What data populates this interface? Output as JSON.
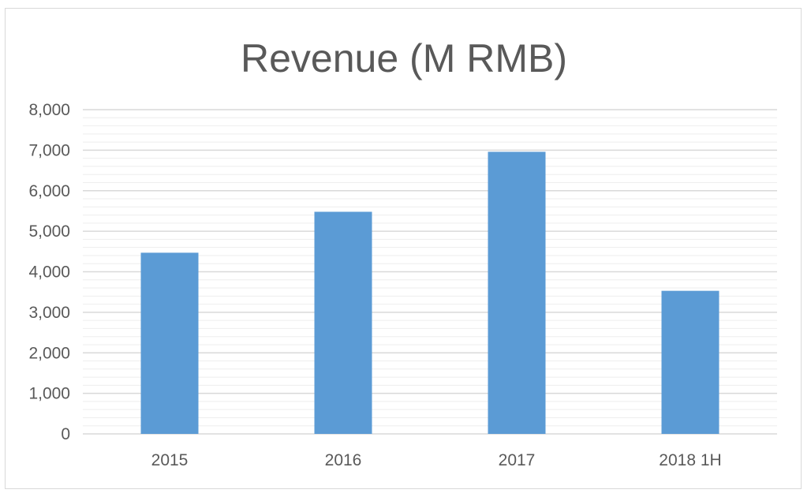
{
  "chart_data": {
    "type": "bar",
    "title": "Revenue (M RMB)",
    "xlabel": "",
    "ylabel": "",
    "categories": [
      "2015",
      "2016",
      "2017",
      "2018 1H"
    ],
    "values": [
      4470,
      5480,
      6960,
      3530
    ],
    "ylim": [
      0,
      8000
    ],
    "ytick_step": 1000,
    "yticks": [
      "0",
      "1,000",
      "2,000",
      "3,000",
      "4,000",
      "5,000",
      "6,000",
      "7,000",
      "8,000"
    ],
    "minor_gridlines": 4,
    "grid": true,
    "legend": "none",
    "bar_color": "#5b9bd5",
    "grid_color": "#d9d9d9",
    "minor_grid_color": "#eeeeee",
    "text_color": "#595959"
  }
}
